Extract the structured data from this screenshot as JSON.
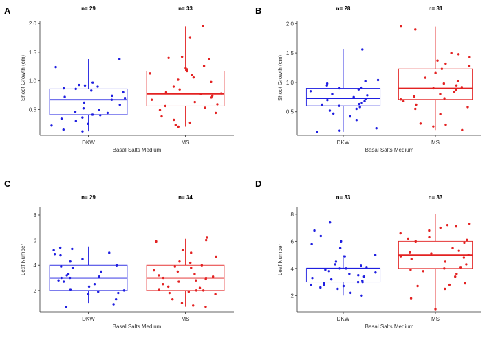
{
  "figure": {
    "panels": [
      "A",
      "B",
      "C",
      "D"
    ]
  },
  "chart_data": [
    {
      "panel": "A",
      "type": "box",
      "xlabel": "Basal Salts Medium",
      "ylabel": "Shoot Growth (cm)",
      "ylim": [
        0.05,
        2.05
      ],
      "yticks": [
        0.5,
        1.0,
        1.5,
        2.0
      ],
      "ytick_labels": [
        "0.5",
        "1.0",
        "1.5",
        "2.0"
      ],
      "groups": [
        {
          "name": "DKW",
          "n_label": "n= 29",
          "color": "#1f1fe0",
          "whisker_low": 0.12,
          "q1": 0.41,
          "median": 0.67,
          "q3": 0.86,
          "whisker_high": 1.38,
          "points": [
            1.38,
            1.24,
            0.97,
            0.93,
            0.92,
            0.9,
            0.87,
            0.86,
            0.83,
            0.8,
            0.74,
            0.72,
            0.7,
            0.67,
            0.62,
            0.58,
            0.52,
            0.49,
            0.46,
            0.44,
            0.41,
            0.4,
            0.36,
            0.34,
            0.3,
            0.25,
            0.22,
            0.15,
            0.12
          ]
        },
        {
          "name": "MS",
          "n_label": "n= 33",
          "color": "#e32222",
          "whisker_low": 0.2,
          "q1": 0.56,
          "median": 0.77,
          "q3": 1.17,
          "whisker_high": 1.95,
          "points": [
            1.95,
            1.75,
            1.42,
            1.4,
            1.38,
            1.26,
            1.22,
            1.2,
            1.17,
            1.13,
            1.1,
            1.06,
            1.02,
            0.98,
            0.9,
            0.85,
            0.8,
            0.78,
            0.77,
            0.74,
            0.71,
            0.67,
            0.63,
            0.59,
            0.56,
            0.53,
            0.49,
            0.44,
            0.38,
            0.32,
            0.27,
            0.23,
            0.2
          ]
        }
      ]
    },
    {
      "panel": "B",
      "type": "box",
      "xlabel": "Basal Salts Medium",
      "ylabel": "Shoot Growth (cm)",
      "ylim": [
        0.1,
        2.05
      ],
      "yticks": [
        0.5,
        1.0,
        1.5,
        2.0
      ],
      "ytick_labels": [
        "0.5",
        "1.0",
        "1.5",
        "2.0"
      ],
      "groups": [
        {
          "name": "DKW",
          "n_label": "n= 28",
          "color": "#1f1fe0",
          "whisker_low": 0.16,
          "q1": 0.6,
          "median": 0.73,
          "q3": 0.9,
          "whisker_high": 1.56,
          "points": [
            1.56,
            1.04,
            1.02,
            0.98,
            0.95,
            0.91,
            0.9,
            0.88,
            0.85,
            0.8,
            0.78,
            0.75,
            0.72,
            0.7,
            0.68,
            0.65,
            0.63,
            0.62,
            0.6,
            0.58,
            0.55,
            0.52,
            0.47,
            0.42,
            0.36,
            0.22,
            0.18,
            0.16
          ]
        },
        {
          "name": "MS",
          "n_label": "n= 31",
          "color": "#e32222",
          "whisker_low": 0.19,
          "q1": 0.71,
          "median": 0.9,
          "q3": 1.23,
          "whisker_high": 1.95,
          "points": [
            1.95,
            1.9,
            1.5,
            1.48,
            1.43,
            1.37,
            1.32,
            1.28,
            1.23,
            1.16,
            1.08,
            1.02,
            0.98,
            0.95,
            0.92,
            0.9,
            0.87,
            0.84,
            0.8,
            0.76,
            0.73,
            0.71,
            0.68,
            0.62,
            0.58,
            0.55,
            0.46,
            0.3,
            0.28,
            0.25,
            0.19
          ]
        }
      ]
    },
    {
      "panel": "C",
      "type": "box",
      "xlabel": "Basal Salts Medium",
      "ylabel": "Leaf Number",
      "ylim": [
        0.3,
        8.6
      ],
      "yticks": [
        2,
        4,
        6,
        8
      ],
      "ytick_labels": [
        "2",
        "4",
        "6",
        "8"
      ],
      "groups": [
        {
          "name": "DKW",
          "n_label": "n= 29",
          "color": "#1f1fe0",
          "whisker_low": 1.0,
          "q1": 2.0,
          "median": 3.0,
          "q3": 4.0,
          "whisker_high": 5.5,
          "points": [
            5.4,
            5.3,
            5.2,
            5.0,
            4.9,
            4.8,
            4.5,
            4.3,
            4.0,
            3.9,
            3.8,
            3.5,
            3.3,
            3.2,
            3.1,
            3.0,
            3.0,
            2.8,
            2.7,
            2.5,
            2.3,
            2.1,
            2.0,
            1.9,
            1.8,
            1.7,
            1.3,
            0.9,
            0.7
          ]
        },
        {
          "name": "MS",
          "n_label": "n= 34",
          "color": "#e32222",
          "whisker_low": 0.7,
          "q1": 2.0,
          "median": 3.0,
          "q3": 4.0,
          "whisker_high": 6.1,
          "points": [
            6.2,
            6.0,
            5.9,
            5.2,
            5.0,
            4.7,
            4.3,
            4.2,
            4.0,
            3.9,
            3.8,
            3.6,
            3.5,
            3.3,
            3.2,
            3.1,
            3.0,
            3.0,
            2.9,
            2.8,
            2.7,
            2.5,
            2.3,
            2.2,
            2.1,
            2.0,
            2.0,
            1.9,
            1.8,
            1.7,
            1.3,
            1.0,
            0.8,
            0.7
          ]
        }
      ]
    },
    {
      "panel": "D",
      "type": "box",
      "xlabel": "Basal Salts Medium",
      "ylabel": "Leaf Number",
      "ylim": [
        0.8,
        8.5
      ],
      "yticks": [
        2,
        4,
        6,
        8
      ],
      "ytick_labels": [
        "2",
        "4",
        "6",
        "8"
      ],
      "groups": [
        {
          "name": "DKW",
          "n_label": "n= 33",
          "color": "#1f1fe0",
          "whisker_low": 2.0,
          "q1": 3.0,
          "median": 4.0,
          "q3": 4.0,
          "whisker_high": 5.0,
          "points": [
            7.4,
            6.8,
            6.4,
            6.0,
            5.8,
            5.5,
            5.0,
            4.9,
            4.5,
            4.3,
            4.2,
            4.1,
            4.0,
            4.0,
            3.9,
            3.8,
            3.7,
            3.6,
            3.5,
            3.4,
            3.3,
            3.2,
            3.1,
            3.0,
            3.0,
            2.9,
            2.8,
            2.8,
            2.7,
            2.6,
            2.5,
            2.2,
            2.0
          ]
        },
        {
          "name": "MS",
          "n_label": "n= 33",
          "color": "#e32222",
          "whisker_low": 1.0,
          "q1": 4.0,
          "median": 5.0,
          "q3": 6.0,
          "whisker_high": 8.0,
          "points": [
            7.3,
            7.2,
            7.1,
            7.0,
            6.8,
            6.6,
            6.3,
            6.2,
            6.1,
            6.0,
            5.9,
            5.5,
            5.3,
            5.2,
            5.1,
            5.0,
            4.9,
            4.8,
            4.7,
            4.5,
            4.3,
            4.1,
            4.0,
            3.9,
            3.8,
            3.6,
            3.4,
            2.9,
            2.8,
            2.7,
            2.5,
            1.8,
            1.0
          ]
        }
      ]
    }
  ]
}
